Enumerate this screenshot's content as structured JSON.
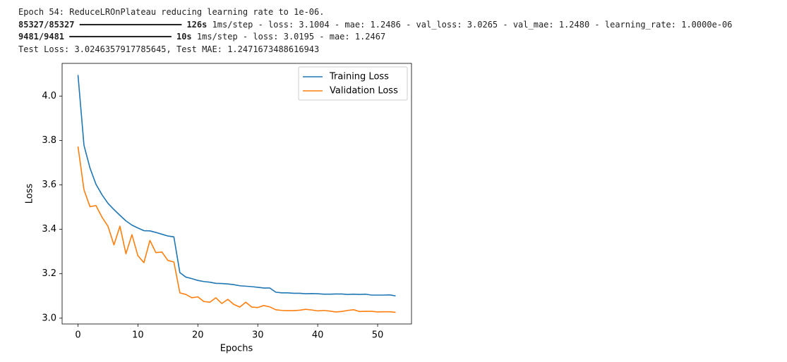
{
  "console": [
    [
      {
        "text": "Epoch 54: ReduceLROnPlateau reducing learning rate to 1e-06.",
        "bold": false
      }
    ],
    [
      {
        "text": "85327/85327",
        "bold": true
      },
      {
        "text": " ━━━━━━━━━━━━━━━━━━━━ ",
        "bold": false
      },
      {
        "text": "126s",
        "bold": true
      },
      {
        "text": " 1ms/step - loss: 3.1004 - mae: 1.2486 - val_loss: 3.0265 - val_mae: 1.2480 - learning_rate: 1.0000e-06",
        "bold": false
      }
    ],
    [
      {
        "text": "9481/9481",
        "bold": true
      },
      {
        "text": " ━━━━━━━━━━━━━━━━━━━━ ",
        "bold": false
      },
      {
        "text": "10s",
        "bold": true
      },
      {
        "text": " 1ms/step - loss: 3.0195 - mae: 1.2467",
        "bold": false
      }
    ],
    [
      {
        "text": "Test Loss: 3.0246357917785645, Test MAE: 1.2471673488616943",
        "bold": false
      }
    ]
  ],
  "chart_data": {
    "type": "line",
    "x_label": "Epochs",
    "y_label": "Loss",
    "x": [
      0,
      1,
      2,
      3,
      4,
      5,
      6,
      7,
      8,
      9,
      10,
      11,
      12,
      13,
      14,
      15,
      16,
      17,
      18,
      19,
      20,
      21,
      22,
      23,
      24,
      25,
      26,
      27,
      28,
      29,
      30,
      31,
      32,
      33,
      34,
      35,
      36,
      37,
      38,
      39,
      40,
      41,
      42,
      43,
      44,
      45,
      46,
      47,
      48,
      49,
      50,
      51,
      52,
      53
    ],
    "series": [
      {
        "name": "Training Loss",
        "color": "#1f77b4",
        "values": [
          4.095,
          3.778,
          3.676,
          3.603,
          3.556,
          3.517,
          3.489,
          3.463,
          3.438,
          3.419,
          3.406,
          3.394,
          3.393,
          3.386,
          3.378,
          3.37,
          3.366,
          3.205,
          3.185,
          3.178,
          3.17,
          3.165,
          3.162,
          3.157,
          3.156,
          3.154,
          3.151,
          3.146,
          3.144,
          3.142,
          3.139,
          3.136,
          3.136,
          3.117,
          3.114,
          3.114,
          3.112,
          3.112,
          3.11,
          3.111,
          3.11,
          3.108,
          3.108,
          3.109,
          3.109,
          3.107,
          3.108,
          3.107,
          3.108,
          3.104,
          3.104,
          3.104,
          3.105,
          3.1004
        ]
      },
      {
        "name": "Validation Loss",
        "color": "#ff7f0e",
        "values": [
          3.773,
          3.578,
          3.502,
          3.507,
          3.455,
          3.414,
          3.33,
          3.414,
          3.29,
          3.376,
          3.281,
          3.25,
          3.35,
          3.295,
          3.298,
          3.26,
          3.253,
          3.114,
          3.107,
          3.092,
          3.096,
          3.075,
          3.072,
          3.092,
          3.066,
          3.085,
          3.062,
          3.05,
          3.072,
          3.05,
          3.048,
          3.057,
          3.051,
          3.038,
          3.035,
          3.034,
          3.034,
          3.036,
          3.04,
          3.037,
          3.033,
          3.035,
          3.032,
          3.028,
          3.03,
          3.035,
          3.038,
          3.03,
          3.031,
          3.031,
          3.028,
          3.029,
          3.029,
          3.0265
        ]
      }
    ],
    "xlim": [
      -2.65,
      55.65
    ],
    "ylim": [
      2.974,
      4.147
    ],
    "xticks": [
      0,
      10,
      20,
      30,
      40,
      50
    ],
    "yticks": [
      {
        "value": 3,
        "label": "3.0"
      },
      3.2,
      3.4,
      3.6,
      3.8,
      {
        "value": 4,
        "label": "4.0"
      }
    ],
    "legend": "upper right",
    "grid": false
  }
}
